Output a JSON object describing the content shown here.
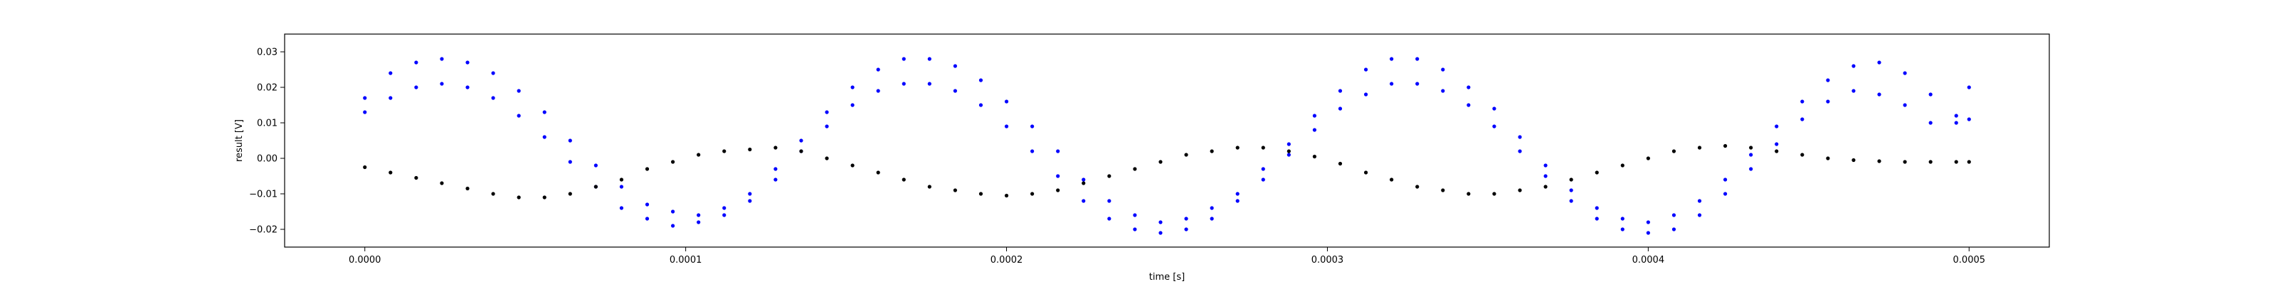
{
  "chart_data": {
    "type": "scatter",
    "title": "",
    "xlabel": "time [s]",
    "ylabel": "result [V]",
    "xlim": [
      -2.5e-05,
      0.000525
    ],
    "ylim": [
      -0.025,
      0.035
    ],
    "x_ticks": [
      0.0,
      0.0001,
      0.0002,
      0.0003,
      0.0004,
      0.0005
    ],
    "x_tick_labels": [
      "0.0000",
      "0.0001",
      "0.0002",
      "0.0003",
      "0.0004",
      "0.0005"
    ],
    "y_ticks": [
      -0.02,
      -0.01,
      0.0,
      0.01,
      0.02,
      0.03
    ],
    "y_tick_labels": [
      "−0.02",
      "−0.01",
      "0.00",
      "0.01",
      "0.02",
      "0.03"
    ],
    "grid": false,
    "legend": "none",
    "series": [
      {
        "color": "#0000ff",
        "x": [
          0.0,
          8e-06,
          1.6e-05,
          2.4e-05,
          3.2e-05,
          4e-05,
          4.8e-05,
          5.6e-05,
          6.4e-05,
          7.2e-05,
          8e-05,
          8.8e-05,
          9.6e-05,
          0.000104,
          0.000112,
          0.00012,
          0.000128,
          0.000136,
          0.000144,
          0.000152,
          0.00016,
          0.000168,
          0.000176,
          0.000184,
          0.000192,
          0.0002,
          0.000208,
          0.000216,
          0.000224,
          0.000232,
          0.00024,
          0.000248,
          0.000256,
          0.000264,
          0.000272,
          0.00028,
          0.000288,
          0.000296,
          0.000304,
          0.000312,
          0.00032,
          0.000328,
          0.000336,
          0.000344,
          0.000352,
          0.00036,
          0.000368,
          0.000376,
          0.000384,
          0.000392,
          0.0004,
          0.000408,
          0.000416,
          0.000424,
          0.000432,
          0.00044,
          0.000448,
          0.000456,
          0.000464,
          0.000472,
          0.00048,
          0.000488,
          0.000496,
          0.0005
        ],
        "y": [
          0.017,
          0.024,
          0.027,
          0.028,
          0.027,
          0.024,
          0.019,
          0.013,
          0.005,
          -0.002,
          -0.008,
          -0.013,
          -0.015,
          -0.016,
          -0.014,
          -0.01,
          -0.003,
          0.005,
          0.013,
          0.02,
          0.025,
          0.028,
          0.028,
          0.026,
          0.022,
          0.016,
          0.009,
          0.002,
          -0.006,
          -0.012,
          -0.016,
          -0.018,
          -0.017,
          -0.014,
          -0.01,
          -0.003,
          0.004,
          0.012,
          0.019,
          0.025,
          0.028,
          0.028,
          0.025,
          0.02,
          0.014,
          0.006,
          -0.002,
          -0.009,
          -0.014,
          -0.017,
          -0.018,
          -0.016,
          -0.012,
          -0.006,
          0.001,
          0.009,
          0.016,
          0.022,
          0.026,
          0.027,
          0.024,
          0.018,
          0.01,
          0.02
        ]
      },
      {
        "color": "#0000ff",
        "x": [
          0.0,
          8e-06,
          1.6e-05,
          2.4e-05,
          3.2e-05,
          4e-05,
          4.8e-05,
          5.6e-05,
          6.4e-05,
          7.2e-05,
          8e-05,
          8.8e-05,
          9.6e-05,
          0.000104,
          0.000112,
          0.00012,
          0.000128,
          0.000136,
          0.000144,
          0.000152,
          0.00016,
          0.000168,
          0.000176,
          0.000184,
          0.000192,
          0.0002,
          0.000208,
          0.000216,
          0.000224,
          0.000232,
          0.00024,
          0.000248,
          0.000256,
          0.000264,
          0.000272,
          0.00028,
          0.000288,
          0.000296,
          0.000304,
          0.000312,
          0.00032,
          0.000328,
          0.000336,
          0.000344,
          0.000352,
          0.00036,
          0.000368,
          0.000376,
          0.000384,
          0.000392,
          0.0004,
          0.000408,
          0.000416,
          0.000424,
          0.000432,
          0.00044,
          0.000448,
          0.000456,
          0.000464,
          0.000472,
          0.00048,
          0.000488,
          0.000496,
          0.0005
        ],
        "y": [
          0.013,
          0.017,
          0.02,
          0.021,
          0.02,
          0.017,
          0.012,
          0.006,
          -0.001,
          -0.008,
          -0.014,
          -0.017,
          -0.019,
          -0.018,
          -0.016,
          -0.012,
          -0.006,
          0.002,
          0.009,
          0.015,
          0.019,
          0.021,
          0.021,
          0.019,
          0.015,
          0.009,
          0.002,
          -0.005,
          -0.012,
          -0.017,
          -0.02,
          -0.021,
          -0.02,
          -0.017,
          -0.012,
          -0.006,
          0.001,
          0.008,
          0.014,
          0.018,
          0.021,
          0.021,
          0.019,
          0.015,
          0.009,
          0.002,
          -0.005,
          -0.012,
          -0.017,
          -0.02,
          -0.021,
          -0.02,
          -0.016,
          -0.01,
          -0.003,
          0.004,
          0.011,
          0.016,
          0.019,
          0.018,
          0.015,
          0.01,
          0.012,
          0.011
        ]
      },
      {
        "color": "#000000",
        "x": [
          0.0,
          8e-06,
          1.6e-05,
          2.4e-05,
          3.2e-05,
          4e-05,
          4.8e-05,
          5.6e-05,
          6.4e-05,
          7.2e-05,
          8e-05,
          8.8e-05,
          9.6e-05,
          0.000104,
          0.000112,
          0.00012,
          0.000128,
          0.000136,
          0.000144,
          0.000152,
          0.00016,
          0.000168,
          0.000176,
          0.000184,
          0.000192,
          0.0002,
          0.000208,
          0.000216,
          0.000224,
          0.000232,
          0.00024,
          0.000248,
          0.000256,
          0.000264,
          0.000272,
          0.00028,
          0.000288,
          0.000296,
          0.000304,
          0.000312,
          0.00032,
          0.000328,
          0.000336,
          0.000344,
          0.000352,
          0.00036,
          0.000368,
          0.000376,
          0.000384,
          0.000392,
          0.0004,
          0.000408,
          0.000416,
          0.000424,
          0.000432,
          0.00044,
          0.000448,
          0.000456,
          0.000464,
          0.000472,
          0.00048,
          0.000488,
          0.000496,
          0.0005
        ],
        "y": [
          -0.0025,
          -0.004,
          -0.0055,
          -0.007,
          -0.0085,
          -0.01,
          -0.011,
          -0.011,
          -0.01,
          -0.008,
          -0.006,
          -0.003,
          -0.001,
          0.001,
          0.002,
          0.0025,
          0.003,
          0.002,
          0.0,
          -0.002,
          -0.004,
          -0.006,
          -0.008,
          -0.009,
          -0.01,
          -0.0105,
          -0.01,
          -0.009,
          -0.007,
          -0.005,
          -0.003,
          -0.001,
          0.001,
          0.002,
          0.003,
          0.003,
          0.002,
          0.0005,
          -0.0015,
          -0.004,
          -0.006,
          -0.008,
          -0.009,
          -0.01,
          -0.01,
          -0.009,
          -0.008,
          -0.006,
          -0.004,
          -0.002,
          0.0,
          0.002,
          0.003,
          0.0035,
          0.003,
          0.002,
          0.001,
          0.0,
          -0.0005,
          -0.0008,
          -0.001,
          -0.001,
          -0.001,
          -0.001
        ]
      }
    ]
  }
}
